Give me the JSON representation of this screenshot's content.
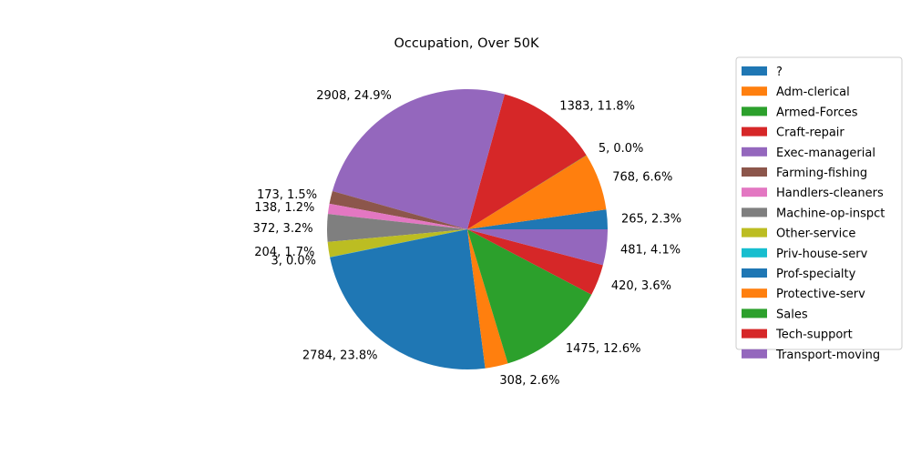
{
  "chart_data": {
    "type": "pie",
    "title": "Occupation, Over 50K",
    "start_angle_deg": 0,
    "direction": "counterclockwise",
    "legend_position": "right",
    "slices": [
      {
        "label": " ?",
        "value": 265,
        "pct": "2.3%",
        "color": "#1f77b4"
      },
      {
        "label": " Adm-clerical",
        "value": 768,
        "pct": "6.6%",
        "color": "#ff7f0e"
      },
      {
        "label": " Armed-Forces",
        "value": 5,
        "pct": "0.0%",
        "color": "#2ca02c"
      },
      {
        "label": " Craft-repair",
        "value": 1383,
        "pct": "11.8%",
        "color": "#d62728"
      },
      {
        "label": " Exec-managerial",
        "value": 2908,
        "pct": "24.9%",
        "color": "#9467bd"
      },
      {
        "label": " Farming-fishing",
        "value": 173,
        "pct": "1.5%",
        "color": "#8c564b"
      },
      {
        "label": " Handlers-cleaners",
        "value": 138,
        "pct": "1.2%",
        "color": "#e377c2"
      },
      {
        "label": " Machine-op-inspct",
        "value": 372,
        "pct": "3.2%",
        "color": "#7f7f7f"
      },
      {
        "label": " Other-service",
        "value": 204,
        "pct": "1.7%",
        "color": "#bcbd22"
      },
      {
        "label": " Priv-house-serv",
        "value": 3,
        "pct": "0.0%",
        "color": "#17becf"
      },
      {
        "label": " Prof-specialty",
        "value": 2784,
        "pct": "23.8%",
        "color": "#1f77b4"
      },
      {
        "label": " Protective-serv",
        "value": 308,
        "pct": "2.6%",
        "color": "#ff7f0e"
      },
      {
        "label": " Sales",
        "value": 1475,
        "pct": "12.6%",
        "color": "#2ca02c"
      },
      {
        "label": " Tech-support",
        "value": 420,
        "pct": "3.6%",
        "color": "#d62728"
      },
      {
        "label": " Transport-moving",
        "value": 481,
        "pct": "4.1%",
        "color": "#9467bd"
      }
    ]
  }
}
